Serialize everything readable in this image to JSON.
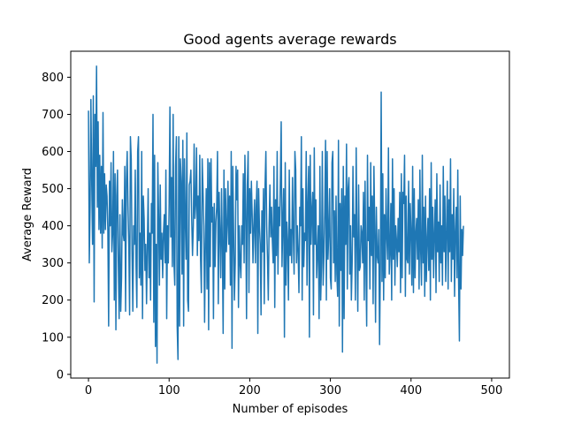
{
  "chart_data": {
    "type": "line",
    "title": "Good agents average rewards",
    "xlabel": "Number of episodes",
    "ylabel": "Average Reward",
    "xlim": [
      -22,
      522
    ],
    "ylim": [
      -10,
      870
    ],
    "xticks": [
      0,
      100,
      200,
      300,
      400,
      500
    ],
    "yticks": [
      0,
      100,
      200,
      300,
      400,
      500,
      600,
      700,
      800
    ],
    "grid": false,
    "legend": "none",
    "series": [
      {
        "color": "#1f77b4",
        "x_start": 0,
        "x_step": 1,
        "values": [
          710,
          300,
          450,
          740,
          520,
          350,
          750,
          195,
          700,
          560,
          830,
          450,
          680,
          390,
          590,
          380,
          560,
          340,
          705,
          380,
          540,
          390,
          510,
          480,
          390,
          130,
          520,
          400,
          570,
          330,
          380,
          600,
          200,
          540,
          120,
          480,
          550,
          300,
          150,
          430,
          170,
          260,
          470,
          380,
          360,
          560,
          170,
          520,
          600,
          450,
          350,
          160,
          640,
          580,
          330,
          170,
          400,
          350,
          550,
          290,
          180,
          600,
          640,
          260,
          380,
          240,
          600,
          150,
          480,
          420,
          280,
          350,
          190,
          340,
          500,
          260,
          380,
          200,
          460,
          380,
          700,
          140,
          590,
          75,
          350,
          30,
          570,
          420,
          240,
          510,
          310,
          380,
          260,
          380,
          430,
          300,
          550,
          150,
          400,
          300,
          460,
          720,
          370,
          530,
          290,
          700,
          300,
          240,
          560,
          640,
          130,
          40,
          640,
          130,
          580,
          520,
          270,
          630,
          130,
          580,
          420,
          310,
          650,
          200,
          170,
          510,
          520,
          550,
          420,
          320,
          400,
          620,
          420,
          460,
          610,
          320,
          480,
          360,
          590,
          310,
          220,
          580,
          500,
          400,
          140,
          350,
          500,
          230,
          580,
          120,
          570,
          290,
          580,
          410,
          450,
          150,
          460,
          290,
          410,
          450,
          600,
          190,
          490,
          380,
          260,
          500,
          350,
          110,
          550,
          230,
          500,
          330,
          400,
          520,
          350,
          480,
          240,
          600,
          70,
          560,
          380,
          200,
          300,
          560,
          470,
          550,
          180,
          400,
          300,
          260,
          400,
          350,
          540,
          300,
          590,
          440,
          150,
          510,
          600,
          220,
          500,
          380,
          520,
          430,
          300,
          400,
          470,
          300,
          450,
          520,
          110,
          500,
          400,
          350,
          160,
          440,
          330,
          500,
          190,
          510,
          600,
          400,
          310,
          200,
          400,
          510,
          370,
          450,
          360,
          300,
          560,
          180,
          470,
          320,
          600,
          270,
          450,
          400,
          530,
          680,
          290,
          410,
          500,
          100,
          570,
          240,
          410,
          350,
          200,
          550,
          320,
          390,
          300,
          530,
          380,
          270,
          600,
          550,
          300,
          400,
          330,
          220,
          450,
          400,
          640,
          200,
          500,
          290,
          380,
          360,
          600,
          240,
          460,
          560,
          100,
          590,
          350,
          440,
          490,
          160,
          610,
          350,
          470,
          260,
          330,
          400,
          150,
          560,
          200,
          300,
          600,
          240,
          320,
          440,
          630,
          200,
          600,
          310,
          380,
          500,
          260,
          230,
          570,
          600,
          300,
          440,
          250,
          480,
          270,
          210,
          630,
          130,
          460,
          280,
          500,
          60,
          560,
          150,
          480,
          350,
          620,
          230,
          500,
          530,
          270,
          400,
          200,
          300,
          560,
          370,
          430,
          200,
          610,
          350,
          170,
          510,
          280,
          290,
          400,
          380,
          300,
          490,
          200,
          520,
          300,
          130,
          590,
          360,
          450,
          230,
          570,
          320,
          480,
          190,
          560,
          400,
          140,
          450,
          320,
          300,
          390,
          80,
          300,
          760,
          250,
          540,
          200,
          430,
          260,
          500,
          370,
          310,
          610,
          270,
          330,
          460,
          200,
          580,
          310,
          500,
          240,
          400,
          360,
          290,
          420,
          330,
          490,
          220,
          540,
          260,
          490,
          460,
          590,
          210,
          480,
          310,
          300,
          520,
          270,
          460,
          380,
          240,
          560,
          220,
          500,
          260,
          380,
          420,
          310,
          470,
          230,
          550,
          330,
          240,
          590,
          300,
          450,
          210,
          480,
          250,
          360,
          420,
          280,
          500,
          200,
          570,
          310,
          450,
          260,
          380,
          470,
          220,
          540,
          330,
          410,
          250,
          510,
          300,
          400,
          240,
          560,
          330,
          480,
          250,
          380,
          520,
          230,
          470,
          330,
          580,
          250,
          430,
          310,
          500,
          210,
          380,
          450,
          260,
          550,
          250,
          90,
          480,
          230,
          390,
          320,
          400
        ]
      }
    ]
  }
}
